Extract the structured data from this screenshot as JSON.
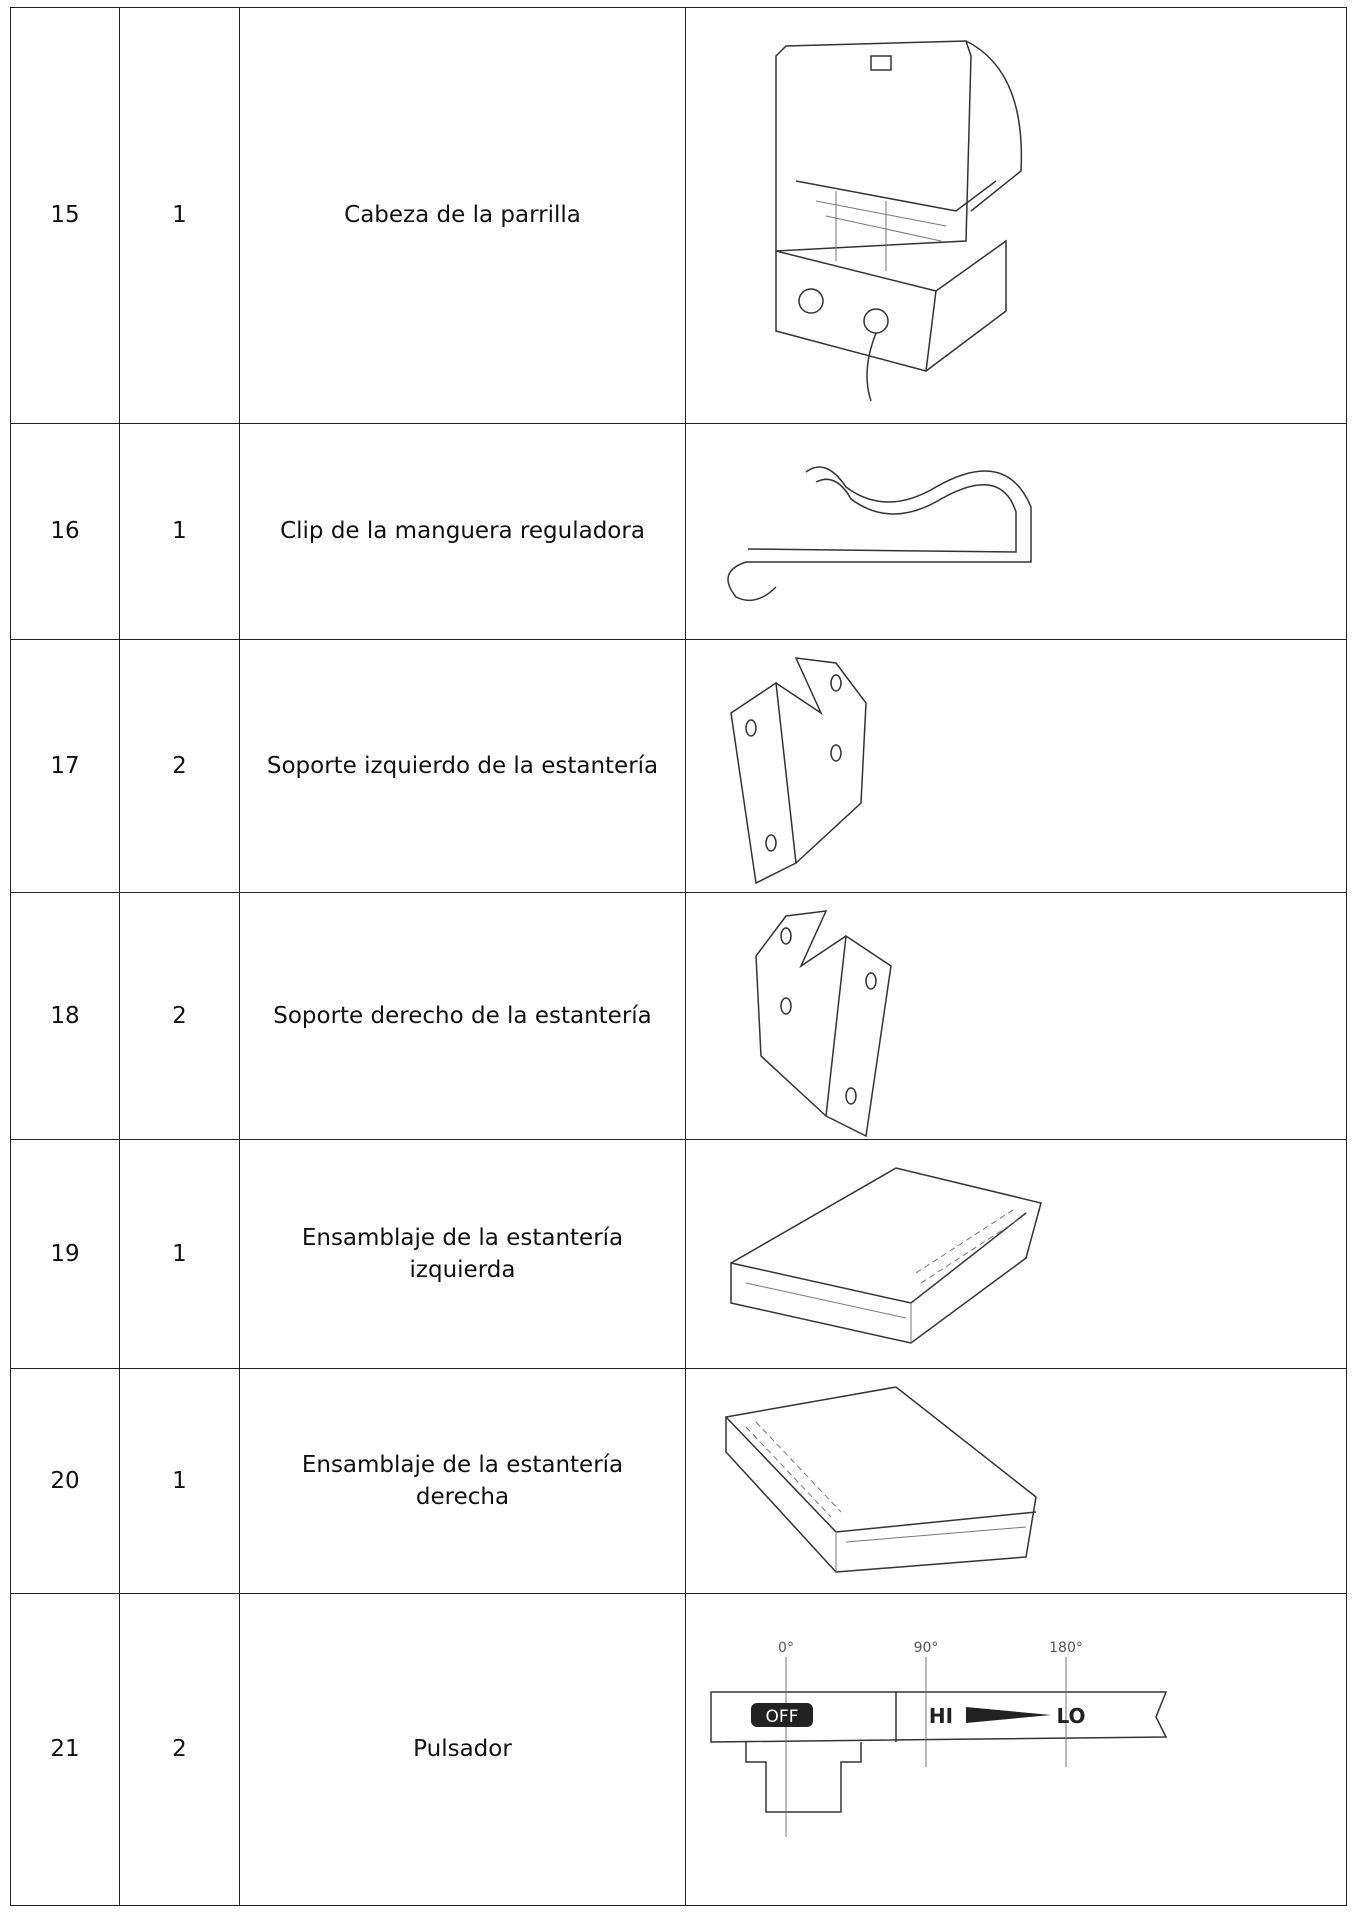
{
  "table": {
    "rows": [
      [
        "15",
        "1",
        "Cabeza de la parrilla"
      ],
      [
        "16",
        "1",
        "Clip de la manguera reguladora"
      ],
      [
        "17",
        "2",
        "Soporte izquierdo de la estantería"
      ],
      [
        "18",
        "2",
        "Soporte derecho de la estantería"
      ],
      [
        "19",
        "1",
        "Ensamblaje de la estantería izquierda"
      ],
      [
        "20",
        "1",
        "Ensamblaje de la estantería derecha"
      ],
      [
        "21",
        "2",
        "Pulsador"
      ]
    ]
  },
  "knob_labels": [
    "0°",
    "90°",
    "180°",
    "OFF",
    "HI",
    "LO"
  ]
}
